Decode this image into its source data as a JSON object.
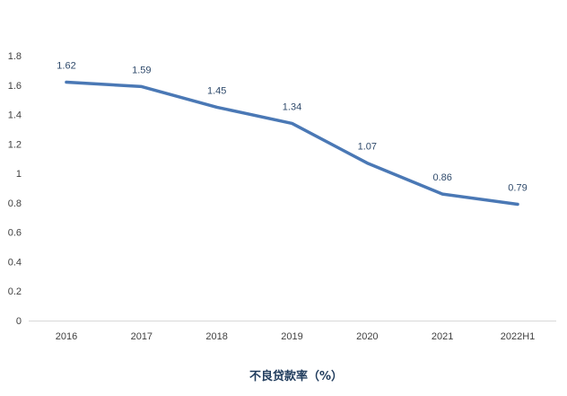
{
  "chart_data": {
    "type": "line",
    "title": "不良贷款率（%）",
    "xlabel": "",
    "ylabel": "",
    "categories": [
      "2016",
      "2017",
      "2018",
      "2019",
      "2020",
      "2021",
      "2022H1"
    ],
    "series": [
      {
        "name": "不良贷款率（%）",
        "values": [
          1.62,
          1.59,
          1.45,
          1.34,
          1.07,
          0.86,
          0.79
        ],
        "color": "#4a78b5"
      }
    ],
    "data_labels": [
      "1.62",
      "1.59",
      "1.45",
      "1.34",
      "1.07",
      "0.86",
      "0.79"
    ],
    "ylim": [
      0,
      1.8
    ],
    "yticks": [
      "0",
      "0.2",
      "0.4",
      "0.6",
      "0.8",
      "1",
      "1.2",
      "1.4",
      "1.6",
      "1.8"
    ],
    "grid": false,
    "legend": "none",
    "title_position": "bottom"
  }
}
